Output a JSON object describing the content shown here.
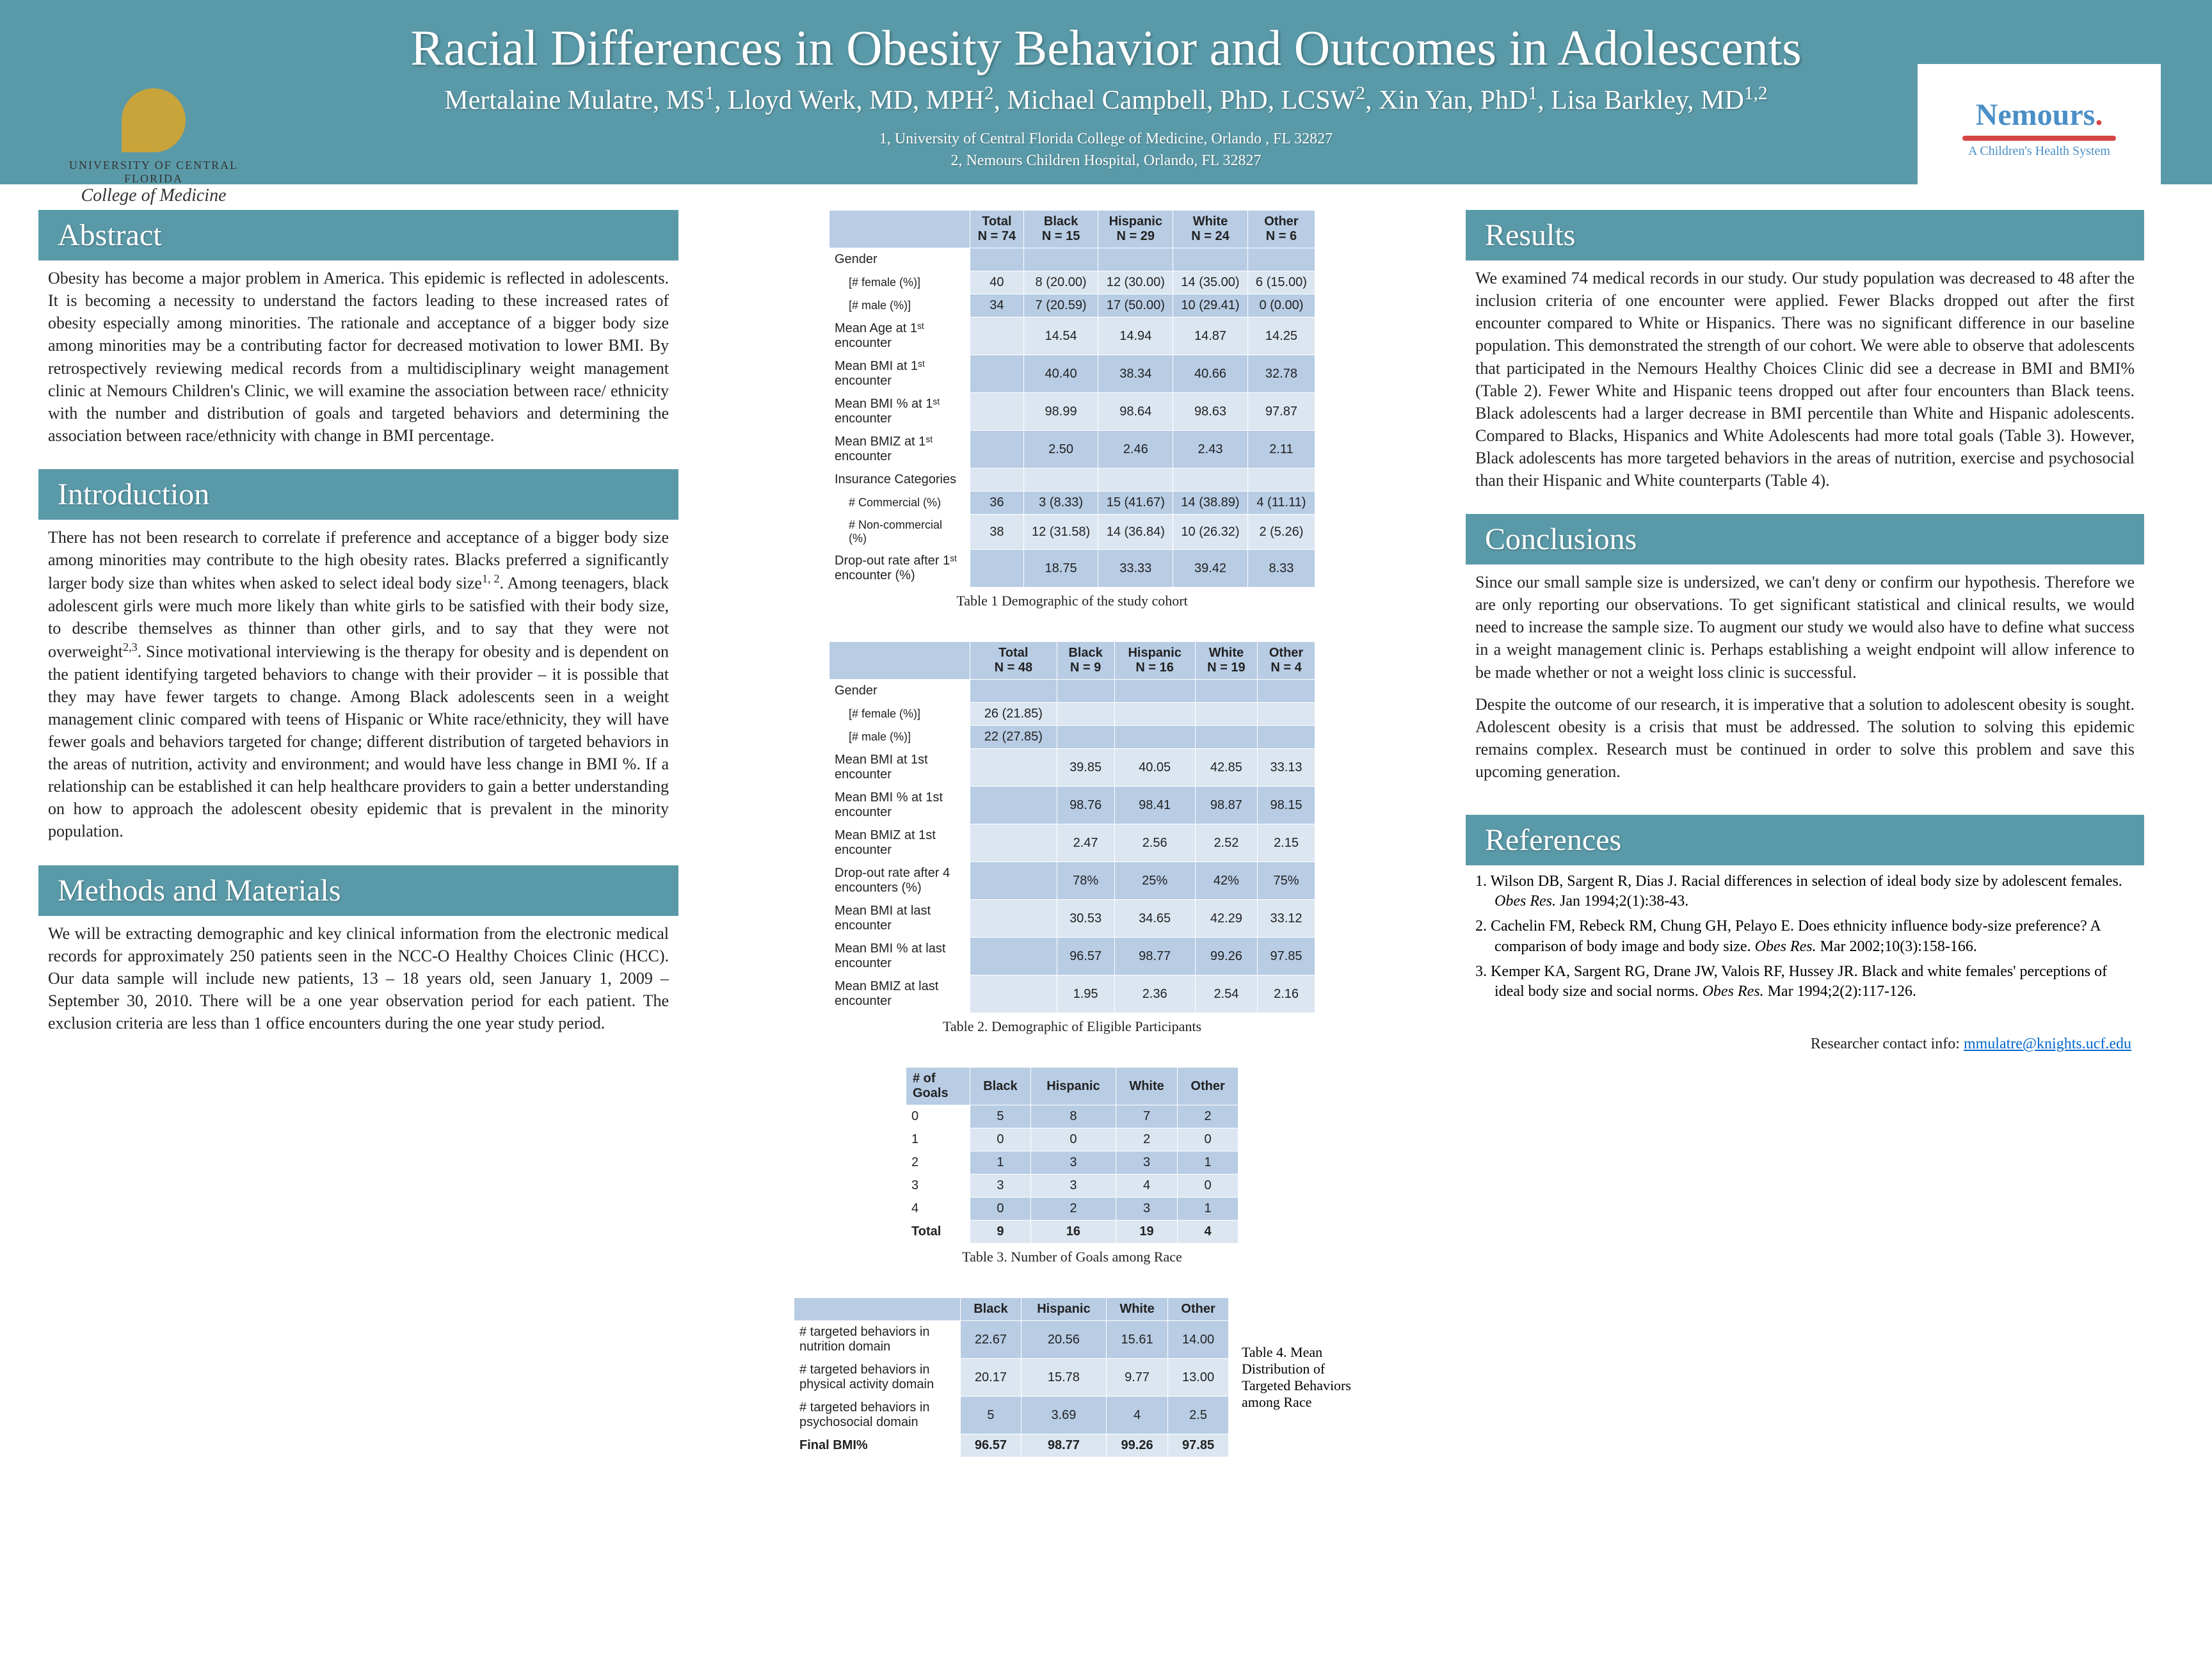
{
  "header": {
    "title": "Racial Differences in Obesity Behavior and Outcomes in Adolescents",
    "authors_html": "Mertalaine Mulatre, MS<span class='sup'>1</span>, Lloyd Werk, MD, MPH<span class='sup'>2</span>, Michael Campbell, PhD, LCSW<span class='sup'>2</span>, Xin Yan, PhD<span class='sup'>1</span>, Lisa Barkley, MD<span class='sup'>1,2</span>",
    "affil1": "1, University of Central Florida College of Medicine, Orlando , FL 32827",
    "affil2": "2, Nemours Children Hospital, Orlando, FL 32827",
    "ucf_top": "UNIVERSITY OF CENTRAL FLORIDA",
    "ucf_bottom": "College of Medicine",
    "nemours": "Nemours",
    "nemours_tag": "A Children's Health System"
  },
  "sections": {
    "abstract": {
      "title": "Abstract",
      "body": "Obesity has become a major problem in America. This epidemic is reflected in adolescents. It is becoming a necessity to understand the factors leading to these increased rates of obesity especially among minorities.  The rationale and acceptance of a bigger body size among minorities may be a contributing factor for decreased motivation to lower BMI. By retrospectively reviewing medical records from a multidisciplinary weight management clinic at Nemours Children's Clinic, we will examine the association between race/ ethnicity with the number and distribution of goals and targeted behaviors and determining the association between race/ethnicity with change in BMI percentage."
    },
    "intro": {
      "title": "Introduction",
      "body_html": "There has not been research to correlate if preference and acceptance of a bigger body size among minorities may contribute to the high obesity rates. Blacks preferred a significantly larger body size than whites when asked to select ideal body size<span class='sup'>1, 2</span>.  Among teenagers, black adolescent girls were much more likely than white girls to be satisfied with their body size, to describe themselves as thinner than other girls, and to say that they were not overweight<span class='sup'>2,3</span>. Since motivational interviewing is the therapy for obesity and is dependent on the patient identifying targeted behaviors to change with their provider – it is possible that they may have fewer targets to change. Among Black adolescents seen in a weight management clinic compared with teens of Hispanic or White race/ethnicity, they will have fewer goals and behaviors targeted for change; different distribution of targeted behaviors in the areas of nutrition, activity and environment; and would have less change in BMI %. If a relationship can be established it can help healthcare providers to gain a better understanding on how to approach the adolescent obesity epidemic that is prevalent in the minority population."
    },
    "methods": {
      "title": "Methods and Materials",
      "body": "We will be extracting demographic and key clinical information from the electronic medical records for approximately 250 patients seen in the NCC-O Healthy Choices Clinic (HCC). Our data sample will include new patients, 13 – 18 years old, seen January 1, 2009 – September 30, 2010. There will be a one year observation period for each patient. The exclusion criteria are less than 1 office encounters during the one year study period."
    },
    "results": {
      "title": "Results",
      "body": "We examined 74 medical records in our study. Our study population was decreased to 48 after the inclusion criteria of one encounter were applied. Fewer Blacks dropped out after the first encounter compared to White or Hispanics. There was no significant difference in our baseline population. This demonstrated the strength of our cohort. We were able to observe that adolescents that participated in the Nemours Healthy Choices Clinic did see a decrease in BMI and BMI% (Table 2). Fewer White and Hispanic teens dropped out after four encounters than Black teens. Black adolescents had a larger decrease in BMI percentile than White and Hispanic adolescents. Compared to Blacks, Hispanics and White Adolescents had more total goals (Table 3).  However, Black adolescents has more targeted behaviors in the areas of nutrition, exercise and psychosocial than their Hispanic and White counterparts (Table 4)."
    },
    "conclusions": {
      "title": "Conclusions",
      "p1": "Since our small sample size is undersized, we can't deny or confirm our hypothesis. Therefore we are only reporting our observations. To get significant statistical and clinical results, we would need to increase the sample size. To augment our study we would also have to define what success in a weight management clinic is. Perhaps establishing a weight endpoint will allow inference to be made whether or not a weight loss clinic is successful.",
      "p2": "Despite the outcome of our research, it is imperative that a solution to adolescent obesity is sought. Adolescent obesity is a crisis that must be addressed. The solution to solving this epidemic remains complex. Research must be continued in order to solve this problem and save this upcoming generation."
    },
    "references": {
      "title": "References",
      "items": [
        "1. Wilson DB, Sargent R, Dias J. Racial differences in selection of ideal body size by adolescent females. <i>Obes Res.</i> Jan 1994;2(1):38-43.",
        "2. Cachelin FM, Rebeck RM, Chung GH, Pelayo E. Does ethnicity influence body-size preference? A comparison of body image and body size. <i>Obes Res.</i> Mar 2002;10(3):158-166.",
        "3. Kemper KA, Sargent RG, Drane JW, Valois RF, Hussey JR. Black and white females' perceptions of ideal body size and social norms. <i>Obes Res.</i> Mar 1994;2(2):117-126."
      ]
    }
  },
  "table1": {
    "caption": "Table 1 Demographic of the study cohort",
    "cols": [
      "",
      "Total\nN = 74",
      "Black\nN = 15",
      "Hispanic\nN = 29",
      "White\nN = 24",
      "Other\nN = 6"
    ],
    "rows": [
      {
        "label": "Gender",
        "sub": true,
        "cells": [
          "",
          "",
          "",
          "",
          ""
        ]
      },
      {
        "label": "[# female (%)]",
        "indent": true,
        "cells": [
          "40",
          "8 (20.00)",
          "12 (30.00)",
          "14 (35.00)",
          "6 (15.00)"
        ]
      },
      {
        "label": "[# male (%)]",
        "indent": true,
        "cells": [
          "34",
          "7 (20.59)",
          "17 (50.00)",
          "10 (29.41)",
          "0 (0.00)"
        ]
      },
      {
        "label": "Mean Age at 1ˢᵗ encounter",
        "cells": [
          "",
          "14.54",
          "14.94",
          "14.87",
          "14.25"
        ]
      },
      {
        "label": "Mean BMI at 1ˢᵗ encounter",
        "cells": [
          "",
          "40.40",
          "38.34",
          "40.66",
          "32.78"
        ]
      },
      {
        "label": "Mean BMI % at 1ˢᵗ encounter",
        "cells": [
          "",
          "98.99",
          "98.64",
          "98.63",
          "97.87"
        ]
      },
      {
        "label": "Mean BMIZ at 1ˢᵗ encounter",
        "cells": [
          "",
          "2.50",
          "2.46",
          "2.43",
          "2.11"
        ]
      },
      {
        "label": "Insurance Categories",
        "sub": true,
        "cells": [
          "",
          "",
          "",
          "",
          ""
        ]
      },
      {
        "label": "# Commercial (%)",
        "indent": true,
        "cells": [
          "36",
          "3 (8.33)",
          "15 (41.67)",
          "14 (38.89)",
          "4 (11.11)"
        ]
      },
      {
        "label": "# Non-commercial (%)",
        "indent": true,
        "cells": [
          "38",
          "12 (31.58)",
          "14 (36.84)",
          "10 (26.32)",
          "2 (5.26)"
        ]
      },
      {
        "label": "Drop-out rate after 1ˢᵗ encounter (%)",
        "cells": [
          "",
          "18.75",
          "33.33",
          "39.42",
          "8.33"
        ]
      }
    ]
  },
  "table2": {
    "caption": "Table 2. Demographic of Eligible Participants",
    "cols": [
      "",
      "Total\nN = 48",
      "Black\nN = 9",
      "Hispanic\nN = 16",
      "White\nN = 19",
      "Other\nN = 4"
    ],
    "rows": [
      {
        "label": "Gender",
        "sub": true,
        "cells": [
          "",
          "",
          "",
          "",
          ""
        ]
      },
      {
        "label": "[# female (%)]",
        "indent": true,
        "cells": [
          "26 (21.85)",
          "",
          "",
          "",
          ""
        ]
      },
      {
        "label": "[# male (%)]",
        "indent": true,
        "cells": [
          "22 (27.85)",
          "",
          "",
          "",
          ""
        ]
      },
      {
        "label": "Mean BMI at 1st encounter",
        "cells": [
          "",
          "39.85",
          "40.05",
          "42.85",
          "33.13"
        ]
      },
      {
        "label": "Mean BMI % at 1st encounter",
        "cells": [
          "",
          "98.76",
          "98.41",
          "98.87",
          "98.15"
        ]
      },
      {
        "label": "Mean BMIZ at 1st encounter",
        "cells": [
          "",
          "2.47",
          "2.56",
          "2.52",
          "2.15"
        ]
      },
      {
        "label": "Drop-out rate after 4 encounters (%)",
        "cells": [
          "",
          "78%",
          "25%",
          "42%",
          "75%"
        ]
      },
      {
        "label": "Mean BMI at last encounter",
        "cells": [
          "",
          "30.53",
          "34.65",
          "42.29",
          "33.12"
        ]
      },
      {
        "label": "Mean BMI % at last encounter",
        "cells": [
          "",
          "96.57",
          "98.77",
          "99.26",
          "97.85"
        ]
      },
      {
        "label": "Mean BMIZ at last encounter",
        "cells": [
          "",
          "1.95",
          "2.36",
          "2.54",
          "2.16"
        ]
      }
    ]
  },
  "table3": {
    "caption": "Table 3. Number of Goals among Race",
    "cols": [
      "# of Goals",
      "Black",
      "Hispanic",
      "White",
      "Other"
    ],
    "rows": [
      {
        "label": "0",
        "cells": [
          "5",
          "8",
          "7",
          "2"
        ]
      },
      {
        "label": "1",
        "cells": [
          "0",
          "0",
          "2",
          "0"
        ]
      },
      {
        "label": "2",
        "cells": [
          "1",
          "3",
          "3",
          "1"
        ]
      },
      {
        "label": "3",
        "cells": [
          "3",
          "3",
          "4",
          "0"
        ]
      },
      {
        "label": "4",
        "cells": [
          "0",
          "2",
          "3",
          "1"
        ]
      },
      {
        "label": "Total",
        "cells": [
          "9",
          "16",
          "19",
          "4"
        ],
        "bold": true
      }
    ]
  },
  "table4": {
    "caption": "Table 4. Mean Distribution of Targeted Behaviors among Race",
    "cols": [
      "",
      "Black",
      "Hispanic",
      "White",
      "Other"
    ],
    "rows": [
      {
        "label": "# targeted behaviors in nutrition domain",
        "cells": [
          "22.67",
          "20.56",
          "15.61",
          "14.00"
        ]
      },
      {
        "label": "# targeted behaviors in physical activity domain",
        "cells": [
          "20.17",
          "15.78",
          "9.77",
          "13.00"
        ]
      },
      {
        "label": "# targeted behaviors in psychosocial domain",
        "cells": [
          "5",
          "3.69",
          "4",
          "2.5"
        ]
      },
      {
        "label": "Final BMI%",
        "cells": [
          "96.57",
          "98.77",
          "99.26",
          "97.85"
        ],
        "bold": true
      }
    ]
  },
  "contact": {
    "label": "Researcher contact info: ",
    "email": "mmulatre@knights.ucf.edu"
  },
  "colors": {
    "teal": "#5a9aa8",
    "thLight": "#dce6f1",
    "thDark": "#b8cce4"
  }
}
